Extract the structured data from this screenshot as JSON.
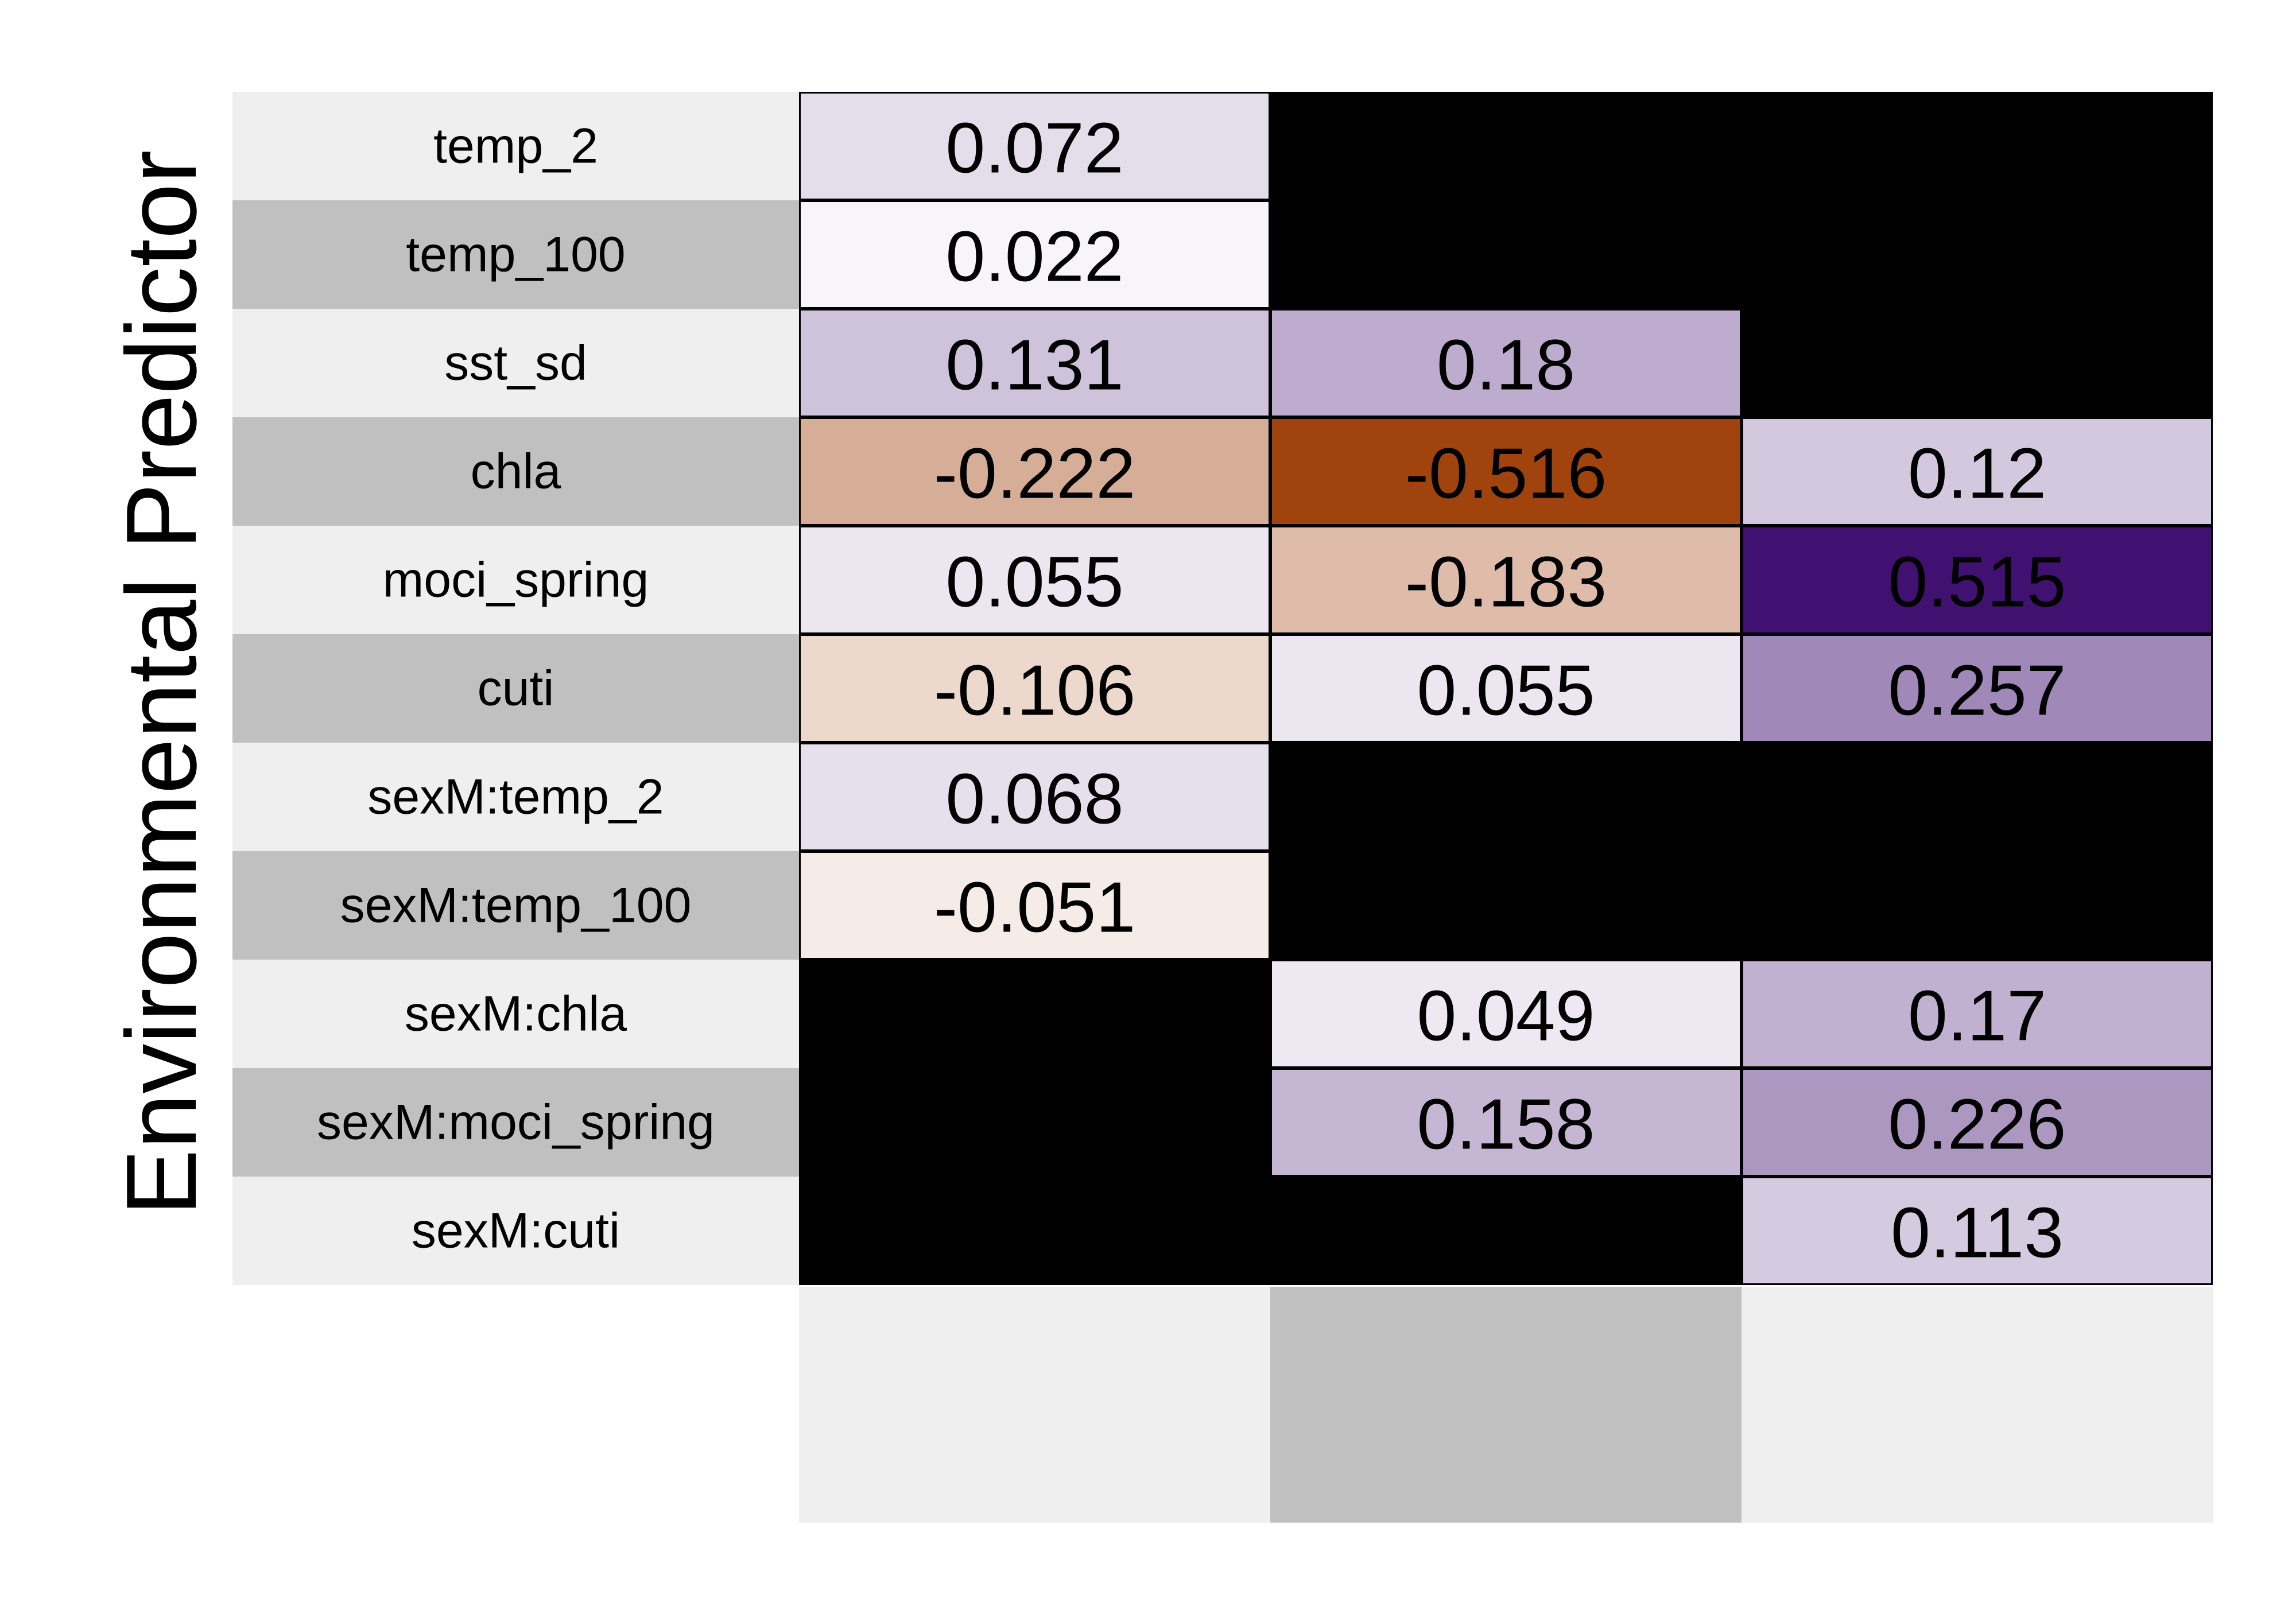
{
  "chart_data": {
    "type": "heatmap",
    "ylabel": "Environmental Predictor",
    "rows": [
      "temp_2",
      "temp_100",
      "sst_sd",
      "chla",
      "moci_spring",
      "cuti",
      "sexM:temp_2",
      "sexM:temp_100",
      "sexM:chla",
      "sexM:moci_spring",
      "sexM:cuti"
    ],
    "columns": [
      "",
      "",
      ""
    ],
    "values": [
      [
        0.072,
        null,
        null
      ],
      [
        0.022,
        null,
        null
      ],
      [
        0.131,
        0.18,
        null
      ],
      [
        -0.222,
        -0.516,
        0.12
      ],
      [
        0.055,
        -0.183,
        0.515
      ],
      [
        -0.106,
        0.055,
        0.257
      ],
      [
        0.068,
        null,
        null
      ],
      [
        -0.051,
        null,
        null
      ],
      [
        null,
        0.049,
        0.17
      ],
      [
        null,
        0.158,
        0.226
      ],
      [
        null,
        null,
        0.113
      ]
    ],
    "cell_labels": [
      [
        "0.072",
        "",
        ""
      ],
      [
        "0.022",
        "",
        ""
      ],
      [
        "0.131",
        "0.18",
        ""
      ],
      [
        "-0.222",
        "-0.516",
        "0.12"
      ],
      [
        "0.055",
        "-0.183",
        "0.515"
      ],
      [
        "-0.106",
        "0.055",
        "0.257"
      ],
      [
        "0.068",
        "",
        ""
      ],
      [
        "-0.051",
        "",
        ""
      ],
      [
        "",
        "0.049",
        "0.17"
      ],
      [
        "",
        "0.158",
        "0.226"
      ],
      [
        "",
        "",
        "0.113"
      ]
    ],
    "color_scale": {
      "negative_max": "#a0420b",
      "zero": "#ffffff",
      "positive_max": "#3f0f70",
      "range": [
        -0.52,
        0.52
      ]
    },
    "missing_color": "#000000",
    "row_band_colors": [
      "#efefef",
      "#c0c0c0"
    ],
    "column_band_colors": [
      "#efefef",
      "#c0c0c0",
      "#efefef"
    ],
    "grid": false,
    "legend": "none"
  }
}
